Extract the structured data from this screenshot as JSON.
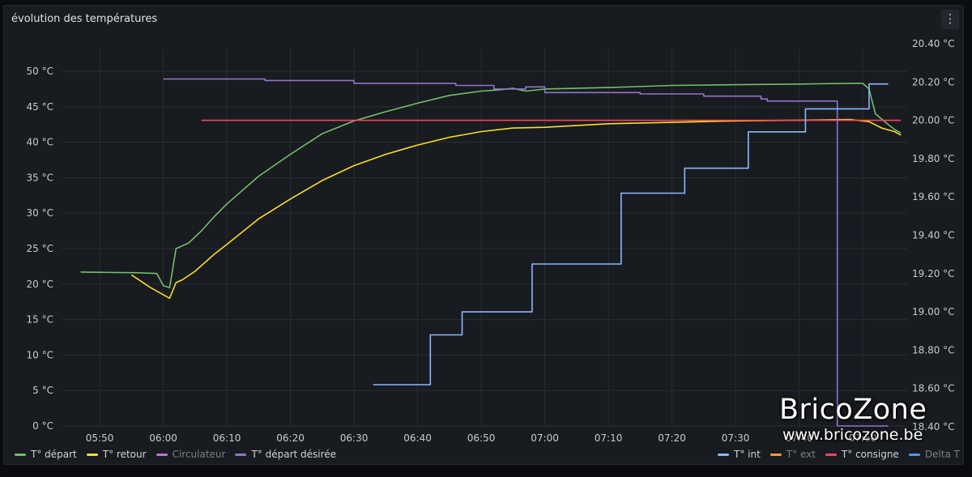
{
  "panel": {
    "title": "évolution des températures",
    "menu_icon": "⋮"
  },
  "watermark": {
    "brand": "BricoZone",
    "url": "www.bricozone.be"
  },
  "legend_left": [
    {
      "label": "T° départ",
      "color": "#73bf69",
      "dim": false
    },
    {
      "label": "T° retour",
      "color": "#fade2a",
      "dim": false
    },
    {
      "label": "Circulateur",
      "color": "#b877d9",
      "dim": true
    },
    {
      "label": "T° départ désirée",
      "color": "#8f75c9",
      "dim": false
    }
  ],
  "legend_right": [
    {
      "label": "T° int",
      "color": "#8ab8ff",
      "dim": false
    },
    {
      "label": "T° ext",
      "color": "#ff9830",
      "dim": true
    },
    {
      "label": "T° consigne",
      "color": "#f2495c",
      "dim": false
    },
    {
      "label": "Delta T",
      "color": "#5794f2",
      "dim": true
    }
  ],
  "chart_data": {
    "type": "line",
    "x_ticks": [
      "05:50",
      "06:00",
      "06:10",
      "06:20",
      "06:30",
      "06:40",
      "06:50",
      "07:00",
      "07:10",
      "07:20",
      "07:30",
      "07:40",
      "07:50"
    ],
    "x_range": [
      "05:44",
      "07:57"
    ],
    "y_left": {
      "ticks": [
        "0 °C",
        "5 °C",
        "10 °C",
        "15 °C",
        "20 °C",
        "25 °C",
        "30 °C",
        "35 °C",
        "40 °C",
        "45 °C",
        "50 °C"
      ],
      "min": 0,
      "max": 50
    },
    "y_right": {
      "ticks": [
        "18.40 °C",
        "18.60 °C",
        "18.80 °C",
        "19.00 °C",
        "19.20 °C",
        "19.40 °C",
        "19.60 °C",
        "19.80 °C",
        "20.00 °C",
        "20.20 °C",
        "20.40 °C"
      ],
      "min": 18.4,
      "max": 20.4
    },
    "grid": true,
    "series": [
      {
        "name": "T° départ",
        "axis": "left",
        "color": "#73bf69",
        "x": [
          "05:47",
          "05:56",
          "05:59",
          "06:00",
          "06:01",
          "06:02",
          "06:04",
          "06:06",
          "06:08",
          "06:10",
          "06:15",
          "06:20",
          "06:25",
          "06:30",
          "06:35",
          "06:40",
          "06:45",
          "06:50",
          "06:53",
          "06:55",
          "06:57",
          "07:00",
          "07:10",
          "07:20",
          "07:30",
          "07:40",
          "07:48",
          "07:50",
          "07:51",
          "07:52",
          "07:54",
          "07:55",
          "07:56"
        ],
        "y": [
          21.7,
          21.6,
          21.5,
          19.8,
          19.5,
          25.0,
          25.8,
          27.5,
          29.5,
          31.3,
          35.2,
          38.3,
          41.2,
          43.0,
          44.3,
          45.5,
          46.6,
          47.2,
          47.4,
          47.6,
          47.2,
          47.5,
          47.7,
          48.0,
          48.1,
          48.2,
          48.3,
          48.3,
          47.5,
          44.0,
          42.5,
          41.8,
          41.3
        ]
      },
      {
        "name": "T° retour",
        "axis": "left",
        "color": "#fade2a",
        "x": [
          "05:55",
          "05:58",
          "06:01",
          "06:02",
          "06:03",
          "06:05",
          "06:08",
          "06:10",
          "06:15",
          "06:20",
          "06:25",
          "06:30",
          "06:35",
          "06:40",
          "06:45",
          "06:50",
          "06:55",
          "07:00",
          "07:10",
          "07:20",
          "07:30",
          "07:40",
          "07:48",
          "07:51",
          "07:53",
          "07:55",
          "07:56"
        ],
        "y": [
          21.3,
          19.5,
          18.0,
          20.2,
          20.6,
          21.8,
          24.2,
          25.6,
          29.2,
          32.0,
          34.6,
          36.7,
          38.3,
          39.6,
          40.7,
          41.5,
          42.0,
          42.1,
          42.6,
          42.8,
          43.0,
          43.1,
          43.2,
          42.9,
          42.0,
          41.5,
          41.0
        ]
      },
      {
        "name": "T° départ désirée",
        "axis": "left",
        "color": "#8f75c9",
        "x": [
          "06:00",
          "06:16",
          "06:16",
          "06:30",
          "06:30",
          "06:46",
          "06:46",
          "06:52",
          "06:52",
          "06:57",
          "06:57",
          "07:00",
          "07:00",
          "07:15",
          "07:15",
          "07:25",
          "07:25",
          "07:34",
          "07:34",
          "07:35",
          "07:35",
          "07:46",
          "07:46",
          "07:54"
        ],
        "y": [
          48.9,
          48.9,
          48.7,
          48.7,
          48.3,
          48.3,
          48.0,
          48.0,
          47.5,
          47.5,
          47.8,
          47.8,
          47.0,
          47.0,
          46.8,
          46.8,
          46.5,
          46.5,
          46.1,
          46.1,
          45.8,
          45.8,
          0.0,
          0.0
        ]
      },
      {
        "name": "T° consigne",
        "axis": "right",
        "color": "#f2495c",
        "x": [
          "06:06",
          "07:56"
        ],
        "y": [
          20.0,
          20.0
        ]
      },
      {
        "name": "T° int",
        "axis": "right",
        "color": "#8ab8ff",
        "x": [
          "06:33",
          "06:42",
          "06:42",
          "06:47",
          "06:47",
          "06:58",
          "06:58",
          "07:12",
          "07:12",
          "07:22",
          "07:22",
          "07:32",
          "07:32",
          "07:38",
          "07:38",
          "07:41",
          "07:41",
          "07:51",
          "07:51",
          "07:54"
        ],
        "y": [
          18.62,
          18.62,
          18.88,
          18.88,
          19.0,
          19.0,
          19.25,
          19.25,
          19.62,
          19.62,
          19.75,
          19.75,
          19.94,
          19.94,
          19.94,
          19.94,
          20.06,
          20.06,
          20.19,
          20.19
        ]
      }
    ]
  }
}
